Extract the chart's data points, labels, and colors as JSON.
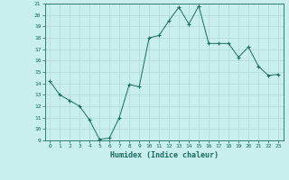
{
  "xlabel": "Humidex (Indice chaleur)",
  "x": [
    0,
    1,
    2,
    3,
    4,
    5,
    6,
    7,
    8,
    9,
    10,
    11,
    12,
    13,
    14,
    15,
    16,
    17,
    18,
    19,
    20,
    21,
    22,
    23
  ],
  "y": [
    14.2,
    13.0,
    12.5,
    12.0,
    10.8,
    9.1,
    9.2,
    11.0,
    13.9,
    13.7,
    18.0,
    18.2,
    19.5,
    20.7,
    19.2,
    20.8,
    17.5,
    17.5,
    17.5,
    16.3,
    17.2,
    15.5,
    14.7,
    14.8
  ],
  "line_color": "#1a6b5e",
  "marker": "+",
  "marker_size": 3,
  "bg_color": "#c8eeee",
  "grid_color": "#b0d8d8",
  "tick_color": "#1a6b5e",
  "label_color": "#1a6b5e",
  "ylim": [
    9,
    21
  ],
  "yticks": [
    9,
    10,
    11,
    12,
    13,
    14,
    15,
    16,
    17,
    18,
    19,
    20,
    21
  ],
  "xticks": [
    0,
    1,
    2,
    3,
    4,
    5,
    6,
    7,
    8,
    9,
    10,
    11,
    12,
    13,
    14,
    15,
    16,
    17,
    18,
    19,
    20,
    21,
    22,
    23
  ],
  "xlim": [
    -0.5,
    23.5
  ]
}
